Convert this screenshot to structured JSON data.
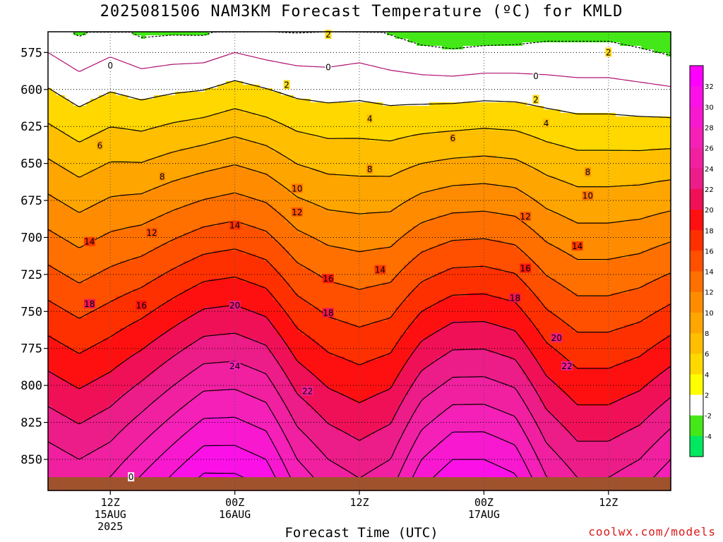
{
  "title": "2025081506 NAM3KM Forecast Temperature (ºC) for KMLD",
  "xlabel": "Forecast Time (UTC)",
  "credit": "coolwx.com/models",
  "chart_data": {
    "type": "heatmap",
    "title": "2025081506 NAM3KM Forecast Temperature (ºC) for KMLD",
    "xlabel": "Forecast Time (UTC)",
    "ylabel": "",
    "y_axis": {
      "ticks": [
        575,
        600,
        625,
        650,
        675,
        700,
        725,
        750,
        775,
        800,
        825,
        850
      ],
      "range": [
        561,
        871
      ],
      "inverted": true,
      "grid": "dotted"
    },
    "x_axis": {
      "range_hours": [
        6,
        66
      ],
      "ticks": [
        {
          "hour": 12,
          "lines": [
            "12Z",
            "15AUG",
            "2025"
          ]
        },
        {
          "hour": 24,
          "lines": [
            "00Z",
            "16AUG"
          ]
        },
        {
          "hour": 36,
          "lines": [
            "12Z"
          ]
        },
        {
          "hour": 48,
          "lines": [
            "00Z",
            "17AUG"
          ]
        },
        {
          "hour": 60,
          "lines": [
            "12Z"
          ]
        }
      ],
      "grid": "dotted"
    },
    "colorbar": {
      "ticks": [
        32,
        30,
        28,
        26,
        24,
        22,
        20,
        18,
        16,
        14,
        12,
        10,
        8,
        6,
        4,
        2,
        -2,
        -4
      ],
      "colors": [
        "#ff00ff",
        "#fc10e8",
        "#f818d0",
        "#f420b8",
        "#f020a0",
        "#ec1c88",
        "#f01058",
        "#ff1010",
        "#ff3000",
        "#ff5000",
        "#ff7000",
        "#ff8c00",
        "#ffa500",
        "#ffbe00",
        "#ffd800",
        "#ffff00",
        "#ffffff",
        "#44e818",
        "#00e860"
      ]
    },
    "contour_levels": [
      -2,
      0,
      2,
      4,
      6,
      8,
      10,
      12,
      14,
      16,
      18,
      20,
      22,
      24,
      26,
      28,
      30,
      32
    ],
    "series": [
      {
        "x": [
          6,
          9,
          12,
          15,
          18,
          21,
          24,
          27,
          30,
          33,
          36,
          39,
          42,
          45,
          48,
          51,
          54,
          57,
          60,
          63,
          66
        ],
        "pressure_of_0C": [
          575,
          588,
          578,
          586,
          583,
          582,
          575,
          580,
          584,
          585,
          582,
          587,
          590,
          591,
          589,
          589,
          590,
          592,
          592,
          595,
          598
        ],
        "temp_at_850": [
          23,
          22,
          23,
          25,
          27,
          29,
          29,
          28,
          24,
          22,
          21,
          22,
          26,
          28,
          28,
          27,
          23,
          21,
          21,
          22,
          24
        ]
      }
    ],
    "contour_labels": [
      {
        "value": 2,
        "hour": 33,
        "hpa": 563
      },
      {
        "value": 2,
        "hour": 60,
        "hpa": 575
      },
      {
        "value": 0,
        "hour": 12,
        "hpa": 584
      },
      {
        "value": 0,
        "hour": 33,
        "hpa": 585
      },
      {
        "value": 0,
        "hour": 53,
        "hpa": 591
      },
      {
        "value": 2,
        "hour": 29,
        "hpa": 597
      },
      {
        "value": 2,
        "hour": 53,
        "hpa": 607
      },
      {
        "value": 4,
        "hour": 37,
        "hpa": 620
      },
      {
        "value": 4,
        "hour": 54,
        "hpa": 623
      },
      {
        "value": 6,
        "hour": 11,
        "hpa": 638
      },
      {
        "value": 6,
        "hour": 45,
        "hpa": 633
      },
      {
        "value": 8,
        "hour": 17,
        "hpa": 659
      },
      {
        "value": 8,
        "hour": 37,
        "hpa": 654
      },
      {
        "value": 8,
        "hour": 58,
        "hpa": 656
      },
      {
        "value": 10,
        "hour": 30,
        "hpa": 667
      },
      {
        "value": 10,
        "hour": 58,
        "hpa": 672
      },
      {
        "value": 12,
        "hour": 16,
        "hpa": 697
      },
      {
        "value": 12,
        "hour": 30,
        "hpa": 683
      },
      {
        "value": 12,
        "hour": 52,
        "hpa": 686
      },
      {
        "value": 14,
        "hour": 10,
        "hpa": 703
      },
      {
        "value": 14,
        "hour": 24,
        "hpa": 692
      },
      {
        "value": 14,
        "hour": 38,
        "hpa": 722
      },
      {
        "value": 14,
        "hour": 57,
        "hpa": 706
      },
      {
        "value": 16,
        "hour": 15,
        "hpa": 746
      },
      {
        "value": 16,
        "hour": 33,
        "hpa": 728
      },
      {
        "value": 16,
        "hour": 52,
        "hpa": 721
      },
      {
        "value": 18,
        "hour": 10,
        "hpa": 745
      },
      {
        "value": 18,
        "hour": 33,
        "hpa": 751
      },
      {
        "value": 18,
        "hour": 51,
        "hpa": 741
      },
      {
        "value": 20,
        "hour": 24,
        "hpa": 746
      },
      {
        "value": 20,
        "hour": 55,
        "hpa": 768
      },
      {
        "value": 22,
        "hour": 31,
        "hpa": 804
      },
      {
        "value": 22,
        "hour": 56,
        "hpa": 787
      },
      {
        "value": 24,
        "hour": 24,
        "hpa": 787
      },
      {
        "value": 0,
        "hour": 14,
        "hpa": 862
      }
    ]
  }
}
